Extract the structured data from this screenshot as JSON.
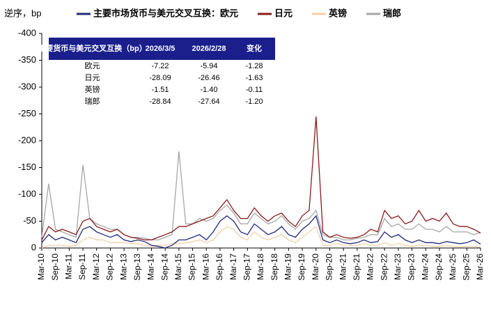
{
  "chart_data": {
    "type": "line",
    "y_label": "逆序，bp",
    "categories": [
      "Mar-10",
      null,
      "Sep-10",
      null,
      "Mar-11",
      null,
      "Sep-11",
      null,
      "Mar-12",
      null,
      "Sep-12",
      null,
      "Mar-13",
      null,
      "Sep-13",
      null,
      "Mar-14",
      null,
      "Sep-14",
      null,
      "Mar-15",
      null,
      "Sep-15",
      null,
      "Mar-16",
      null,
      "Sep-16",
      null,
      "Mar-17",
      null,
      "Sep-17",
      null,
      "Mar-18",
      null,
      "Sep-18",
      null,
      "Mar-19",
      null,
      "Sep-19",
      null,
      "Mar-20",
      null,
      "Sep-20",
      null,
      "Mar-21",
      null,
      "Sep-21",
      null,
      "Mar-22",
      null,
      "Sep-22",
      null,
      "Mar-23",
      null,
      "Sep-23",
      null,
      "Mar-24",
      null,
      "Sep-24",
      null,
      "Mar-25",
      null,
      "Sep-25",
      null,
      "Mar-26"
    ],
    "series": [
      {
        "name": "主要市场货币与美元交叉互换：欧元",
        "color": "#1f2a7a",
        "values": [
          -10,
          -25,
          -15,
          -20,
          -15,
          -10,
          -35,
          -40,
          -30,
          -25,
          -20,
          -25,
          -15,
          -12,
          -15,
          -12,
          -5,
          -3,
          0,
          -5,
          -15,
          -15,
          -20,
          -25,
          -15,
          -30,
          -50,
          -60,
          -50,
          -30,
          -25,
          -45,
          -35,
          -25,
          -30,
          -40,
          -25,
          -20,
          -35,
          -45,
          -60,
          -15,
          -10,
          -15,
          -10,
          -8,
          -10,
          -15,
          -10,
          -12,
          -30,
          -20,
          -25,
          -15,
          -10,
          -15,
          -10,
          -10,
          -8,
          -12,
          -10,
          -8,
          -10,
          -15,
          -7.22
        ]
      },
      {
        "name": "日元",
        "color": "#8b1a1a",
        "values": [
          -15,
          -40,
          -30,
          -35,
          -30,
          -25,
          -50,
          -55,
          -40,
          -35,
          -30,
          -35,
          -25,
          -20,
          -18,
          -15,
          -15,
          -20,
          -25,
          -30,
          -40,
          -40,
          -45,
          -50,
          -55,
          -60,
          -75,
          -90,
          -70,
          -55,
          -55,
          -75,
          -60,
          -50,
          -60,
          -65,
          -50,
          -40,
          -60,
          -70,
          -245,
          -30,
          -20,
          -25,
          -20,
          -18,
          -20,
          -25,
          -35,
          -30,
          -70,
          -55,
          -60,
          -45,
          -50,
          -70,
          -50,
          -55,
          -50,
          -65,
          -45,
          -40,
          -40,
          -35,
          -28.09
        ]
      },
      {
        "name": "英镑",
        "color": "#f5cfa6",
        "values": [
          0,
          -5,
          -5,
          -5,
          -3,
          -5,
          -15,
          -20,
          -15,
          -15,
          -10,
          -10,
          -10,
          -8,
          -8,
          -5,
          -3,
          -5,
          -5,
          -8,
          -8,
          -10,
          -12,
          -15,
          -10,
          -15,
          -30,
          -40,
          -35,
          -20,
          -15,
          -30,
          -20,
          -15,
          -20,
          -25,
          -15,
          -10,
          -20,
          -30,
          -40,
          -5,
          -5,
          -8,
          -5,
          -5,
          -5,
          -8,
          -5,
          -5,
          -10,
          -5,
          -8,
          -5,
          -3,
          -5,
          -5,
          -3,
          -3,
          -5,
          -3,
          -2,
          -3,
          -3,
          -1.51
        ]
      },
      {
        "name": "瑞郎",
        "color": "#a6a6a6",
        "values": [
          -20,
          -120,
          -35,
          -30,
          -25,
          -20,
          -155,
          -55,
          -45,
          -40,
          -35,
          -35,
          -25,
          -20,
          -20,
          -18,
          -15,
          -15,
          -20,
          -25,
          -180,
          -45,
          -45,
          -55,
          -50,
          -55,
          -70,
          -80,
          -65,
          -45,
          -45,
          -65,
          -55,
          -45,
          -50,
          -60,
          -45,
          -35,
          -50,
          -55,
          -70,
          -25,
          -20,
          -20,
          -15,
          -15,
          -18,
          -20,
          -25,
          -25,
          -55,
          -40,
          -45,
          -35,
          -35,
          -45,
          -35,
          -35,
          -30,
          -40,
          -30,
          -30,
          -30,
          -25,
          -28.84
        ]
      }
    ],
    "ylim": [
      0,
      -400
    ],
    "yticks": [
      -400,
      -350,
      -300,
      -250,
      -200,
      -150,
      -100,
      -50,
      0
    ],
    "reversed": true,
    "table": {
      "header": [
        "主要货币与美元交叉互换（bp）",
        "2026/3/5",
        "2026/2/28",
        "变化"
      ],
      "rows": [
        [
          "欧元",
          "-7.22",
          "-5.94",
          "-1.28"
        ],
        [
          "日元",
          "-28.09",
          "-26.46",
          "-1.63"
        ],
        [
          "英镑",
          "-1.51",
          "-1.40",
          "-0.11"
        ],
        [
          "瑞郎",
          "-28.84",
          "-27.64",
          "-1.20"
        ]
      ]
    }
  }
}
